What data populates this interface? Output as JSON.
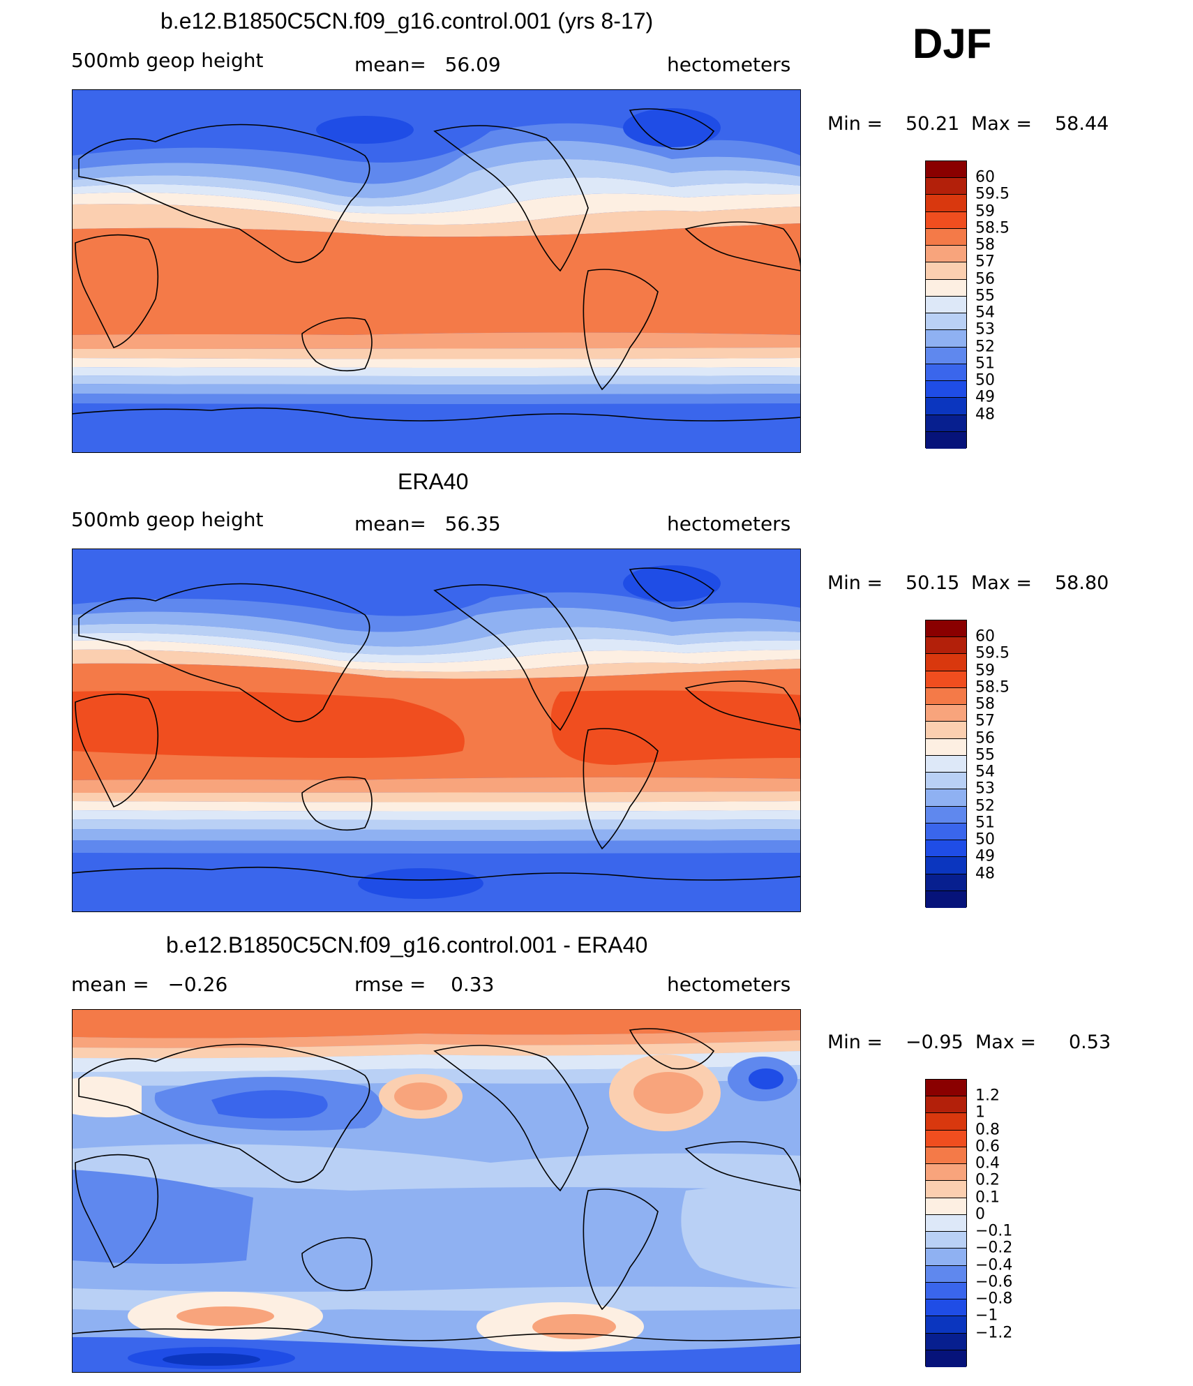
{
  "season": "DJF",
  "panels": [
    {
      "id": "model",
      "title": "b.e12.B1850C5CN.f09_g16.control.001 (yrs 8-17)",
      "left_label": "500mb geop height",
      "center_label": "mean=   56.09",
      "units": "hectometers",
      "minmax": {
        "min_label": "Min =",
        "min_value": "50.21",
        "max_label": "Max =",
        "max_value": "58.44"
      },
      "colorbar": {
        "colors": [
          "#8a0000",
          "#b3200a",
          "#d9380e",
          "#f04e1f",
          "#f47a48",
          "#f8a47c",
          "#fbcfb0",
          "#fdefe2",
          "#dde8f8",
          "#b9d0f5",
          "#8fb1f2",
          "#5f88ee",
          "#3a66ec",
          "#1f4de6",
          "#0b36bf",
          "#071f8f",
          "#06137a"
        ],
        "labels": [
          "60",
          "59.5",
          "59",
          "58.5",
          "58",
          "57",
          "56",
          "55",
          "54",
          "53",
          "52",
          "51",
          "50",
          "49",
          "48"
        ]
      }
    },
    {
      "id": "obs",
      "title": "ERA40",
      "left_label": "500mb geop height",
      "center_label": "mean=   56.35",
      "units": "hectometers",
      "minmax": {
        "min_label": "Min =",
        "min_value": "50.15",
        "max_label": "Max =",
        "max_value": "58.80"
      },
      "colorbar": {
        "colors": [
          "#8a0000",
          "#b3200a",
          "#d9380e",
          "#f04e1f",
          "#f47a48",
          "#f8a47c",
          "#fbcfb0",
          "#fdefe2",
          "#dde8f8",
          "#b9d0f5",
          "#8fb1f2",
          "#5f88ee",
          "#3a66ec",
          "#1f4de6",
          "#0b36bf",
          "#071f8f",
          "#06137a"
        ],
        "labels": [
          "60",
          "59.5",
          "59",
          "58.5",
          "58",
          "57",
          "56",
          "55",
          "54",
          "53",
          "52",
          "51",
          "50",
          "49",
          "48"
        ]
      }
    },
    {
      "id": "diff",
      "title": "b.e12.B1850C5CN.f09_g16.control.001 - ERA40",
      "left_label": "mean =   −0.26",
      "center_label": "rmse =    0.33",
      "units": "hectometers",
      "minmax": {
        "min_label": "Min =",
        "min_value": "−0.95",
        "max_label": "Max =",
        "max_value": "0.53"
      },
      "colorbar": {
        "colors": [
          "#8a0000",
          "#b3200a",
          "#d9380e",
          "#f04e1f",
          "#f47a48",
          "#f8a47c",
          "#fbcfb0",
          "#fdefe2",
          "#dde8f8",
          "#b9d0f5",
          "#8fb1f2",
          "#5f88ee",
          "#3a66ec",
          "#1f4de6",
          "#0b36bf",
          "#071f8f",
          "#06137a"
        ],
        "labels": [
          "1.2",
          "1",
          "0.8",
          "0.6",
          "0.4",
          "0.2",
          "0.1",
          "0",
          "−0.1",
          "−0.2",
          "−0.4",
          "−0.6",
          "−0.8",
          "−1",
          "−1.2"
        ]
      }
    }
  ]
}
